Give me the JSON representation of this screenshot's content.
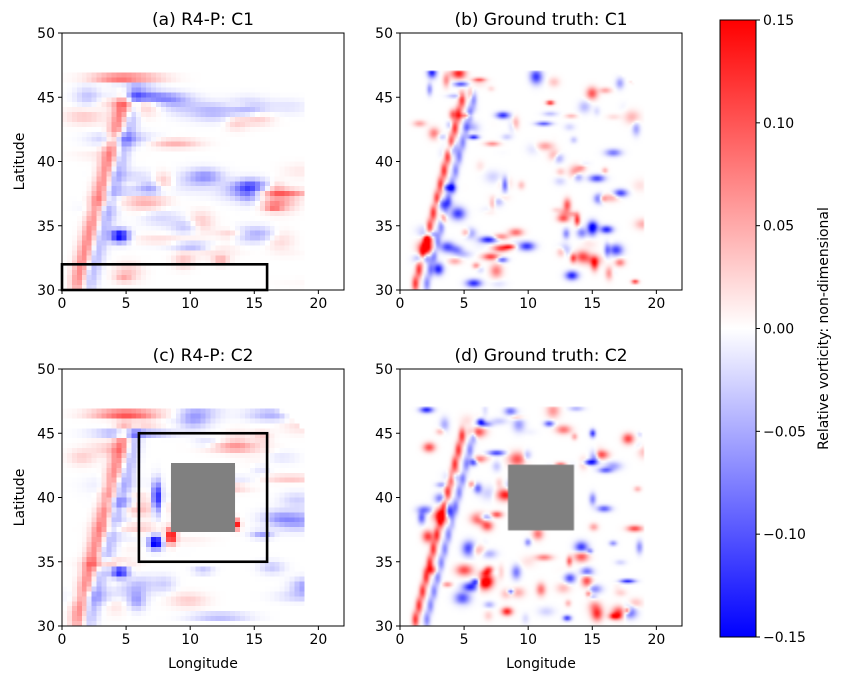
{
  "chart_data": {
    "type": "heatmap",
    "panels": [
      {
        "id": "a",
        "title": "(a) R4-P: C1",
        "xlabel": "",
        "ylabel": "Latitude",
        "kind": "coarse",
        "case": "C1",
        "seed": 7,
        "annotation_boxes": [
          {
            "x": [
              0,
              16
            ],
            "y": [
              30,
              32
            ]
          }
        ]
      },
      {
        "id": "b",
        "title": "(b) Ground truth: C1",
        "xlabel": "",
        "ylabel": "",
        "kind": "fine",
        "case": "C1",
        "seed": 19,
        "annotation_boxes": []
      },
      {
        "id": "c",
        "title": "(c) R4-P: C2",
        "xlabel": "Longitude",
        "ylabel": "Latitude",
        "kind": "coarse",
        "case": "C2",
        "seed": 31,
        "annotation_boxes": [
          {
            "x": [
              6,
              16
            ],
            "y": [
              35,
              45
            ]
          }
        ]
      },
      {
        "id": "d",
        "title": "(d) Ground truth: C2",
        "xlabel": "Longitude",
        "ylabel": "",
        "kind": "fine",
        "case": "C2",
        "seed": 43,
        "annotation_boxes": []
      }
    ],
    "xlim": [
      0,
      22
    ],
    "ylim": [
      30,
      50
    ],
    "xticks": [
      0,
      5,
      10,
      15,
      20
    ],
    "yticks": [
      30,
      35,
      40,
      45,
      50
    ],
    "masked_region_C2": {
      "x": [
        8.5,
        13.5
      ],
      "y": [
        37.5,
        42.5
      ],
      "color": "#808080"
    },
    "colorbar": {
      "label": "Relative vorticity: non-dimensional",
      "range": [
        -0.15,
        0.15
      ],
      "ticks": [
        -0.15,
        -0.1,
        -0.05,
        0.0,
        0.05,
        0.1,
        0.15
      ],
      "tick_labels": [
        "−0.15",
        "−0.10",
        "−0.05",
        "0.00",
        "0.05",
        "0.10",
        "0.15"
      ],
      "colormap": "bwr",
      "low_color": "#0000ff",
      "mid_color": "#ffffff",
      "high_color": "#ff0000"
    }
  }
}
